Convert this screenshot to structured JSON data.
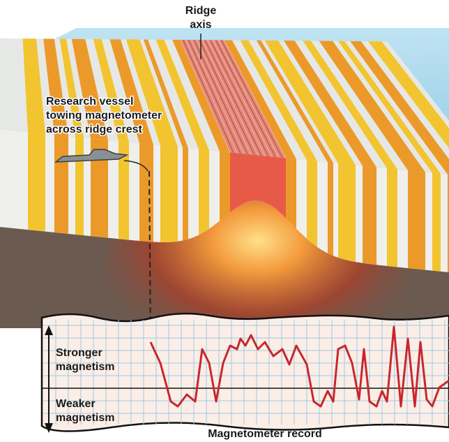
{
  "ridge_label": [
    "Ridge",
    "axis"
  ],
  "vessel_label": [
    "Research vessel",
    "towing magnetometer",
    "across ridge crest"
  ],
  "record": {
    "stronger_label": [
      "Stronger",
      "magnetism"
    ],
    "weaker_label": [
      "Weaker",
      "magnetism"
    ],
    "caption": "Magnetometer record"
  }
}
